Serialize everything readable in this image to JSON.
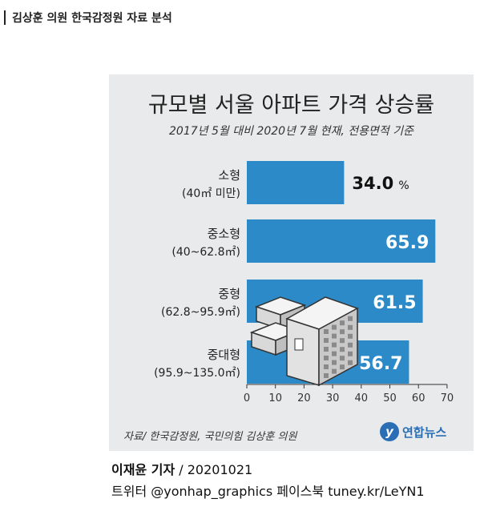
{
  "heading": "김상훈 의원 한국감정원 자료 분석",
  "card": {
    "title": "규모별 서울 아파트 가격 상승률",
    "subtitle": "2017년 5월 대비 2020년 7월 현재, 전용면적 기준",
    "source": "자료/ 한국감정원, 국민의힘 김상훈 의원",
    "logo_text": "연합뉴스"
  },
  "credit": {
    "author": "이재윤 기자",
    "date": "/ 20201021",
    "social": "트위터 @yonhap_graphics  페이스북 tuney.kr/LeYN1"
  },
  "chart_data": {
    "type": "bar",
    "orientation": "horizontal",
    "categories": [
      {
        "name": "소형",
        "range": "(40㎡ 미만)"
      },
      {
        "name": "중소형",
        "range": "(40~62.8㎡)"
      },
      {
        "name": "중형",
        "range": "(62.8~95.9㎡)"
      },
      {
        "name": "중대형",
        "range": "(95.9~135.0㎡)"
      }
    ],
    "values": [
      34.0,
      65.9,
      61.5,
      56.7
    ],
    "value_labels": [
      "34.0",
      "65.9",
      "61.5",
      "56.7"
    ],
    "value_unit": "%",
    "xlim": [
      0,
      70
    ],
    "xticks": [
      "0",
      "10",
      "20",
      "30",
      "40",
      "50",
      "60",
      "70"
    ],
    "bar_color": "#2b8ac7",
    "grid": false
  }
}
